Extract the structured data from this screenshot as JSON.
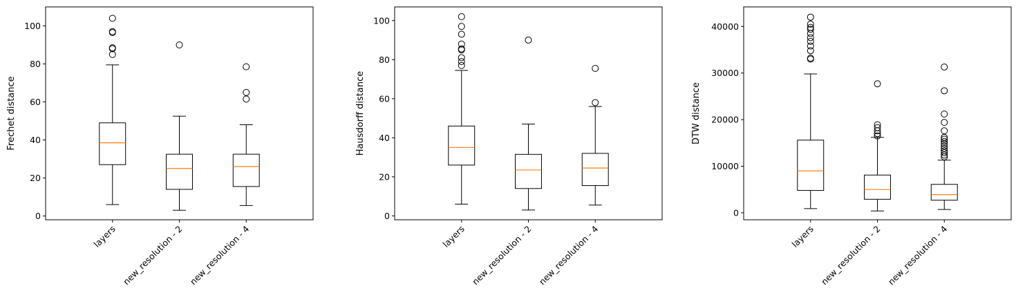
{
  "chart_data": [
    {
      "type": "box",
      "ylabel": "Frechet distance",
      "categories": [
        "layers",
        "new_resolution - 2",
        "new_resolution - 4"
      ],
      "ylim": [
        -2,
        110
      ],
      "yticks": [
        0,
        20,
        40,
        60,
        80,
        100
      ],
      "boxes": [
        {
          "whislo": 6,
          "q1": 27,
          "med": 38.5,
          "q3": 49,
          "whishi": 79.5,
          "fliers": [
            85,
            88,
            88.5,
            96.5,
            97,
            104
          ]
        },
        {
          "whislo": 3,
          "q1": 14,
          "med": 25,
          "q3": 32.5,
          "whishi": 52.5,
          "fliers": [
            90
          ]
        },
        {
          "whislo": 5.5,
          "q1": 15.5,
          "med": 26,
          "q3": 32.5,
          "whishi": 48,
          "fliers": [
            61.5,
            65,
            78.5
          ]
        }
      ]
    },
    {
      "type": "box",
      "ylabel": "Hausdorff distance",
      "categories": [
        "layers",
        "new_resolution - 2",
        "new_resolution - 4"
      ],
      "ylim": [
        -2,
        107
      ],
      "yticks": [
        0,
        20,
        40,
        60,
        80,
        100
      ],
      "boxes": [
        {
          "whislo": 6,
          "q1": 26,
          "med": 35,
          "q3": 46,
          "whishi": 74.5,
          "fliers": [
            77,
            79,
            81,
            85,
            85.5,
            88,
            93,
            97,
            102
          ]
        },
        {
          "whislo": 3,
          "q1": 14,
          "med": 23.5,
          "q3": 31.5,
          "whishi": 47,
          "fliers": [
            90
          ]
        },
        {
          "whislo": 5.5,
          "q1": 15.5,
          "med": 24.5,
          "q3": 32,
          "whishi": 56,
          "fliers": [
            58,
            75.5
          ]
        }
      ]
    },
    {
      "type": "box",
      "ylabel": "DTW distance",
      "categories": [
        "layers",
        "new_resolution - 2",
        "new_resolution - 4"
      ],
      "ylim": [
        -1500,
        44200
      ],
      "yticks": [
        0,
        10000,
        20000,
        30000,
        40000
      ],
      "boxes": [
        {
          "whislo": 900,
          "q1": 4800,
          "med": 9000,
          "q3": 15600,
          "whishi": 29800,
          "fliers": [
            33000,
            33200,
            34800,
            35800,
            36800,
            37600,
            38500,
            39400,
            39800,
            40500,
            42000
          ]
        },
        {
          "whislo": 400,
          "q1": 2900,
          "med": 5000,
          "q3": 8100,
          "whishi": 16200,
          "fliers": [
            16500,
            17000,
            17600,
            18300,
            18900,
            27700
          ]
        },
        {
          "whislo": 700,
          "q1": 2700,
          "med": 3900,
          "q3": 6100,
          "whishi": 11300,
          "fliers": [
            12000,
            12400,
            12900,
            13300,
            13800,
            14300,
            14800,
            15300,
            15800,
            16200,
            17600,
            19400,
            21200,
            26200,
            31300
          ]
        }
      ]
    }
  ]
}
